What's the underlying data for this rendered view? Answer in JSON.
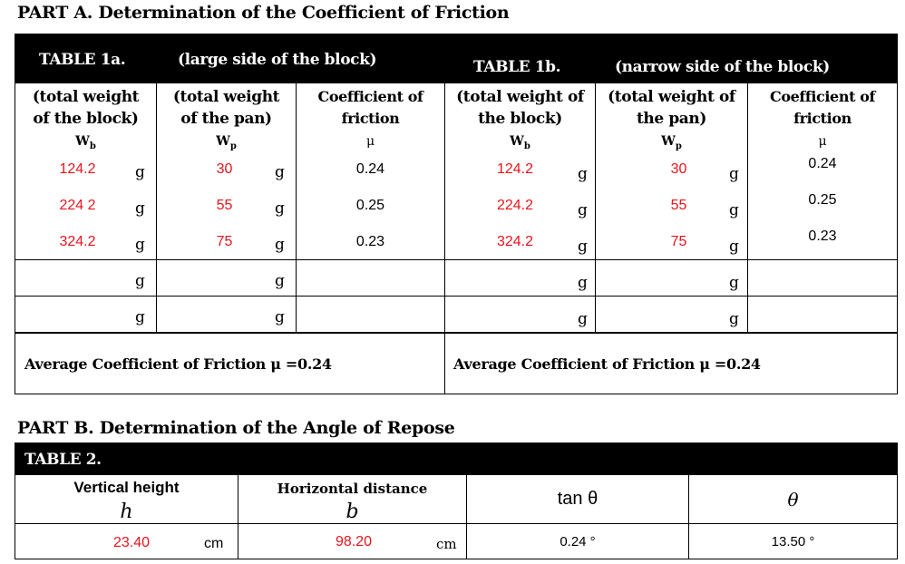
{
  "partA": {
    "title": "PART A.  Determination of the Coefficient of Friction",
    "table1a": {
      "name": "TABLE 1a.",
      "desc": "(large side of   the block)",
      "col1": [
        "(total weight",
        "of the block)"
      ],
      "col2": [
        "(total weight",
        "of the pan)"
      ],
      "col3": [
        "Coefficient of",
        "friction"
      ],
      "sym1": "Wb",
      "sym2": "Wp",
      "sym3": "μ",
      "rows": [
        {
          "wb": "124.2",
          "wp": "30",
          "mu": "0.24"
        },
        {
          "wb": "224 2",
          "wp": "55",
          "mu": "0.25"
        },
        {
          "wb": "324.2",
          "wp": "75",
          "mu": "0.23"
        },
        {
          "wb": "",
          "wp": "",
          "mu": ""
        },
        {
          "wb": "",
          "wp": "",
          "mu": ""
        }
      ],
      "unit": "g",
      "average": "Average Coefficient of Friction μ =0.24"
    },
    "table1b": {
      "name": "TABLE 1b.",
      "desc": "(narrow side of   the block)",
      "col1": [
        "(total weight of",
        "the block)"
      ],
      "col2": [
        "(total weight of",
        "the pan)"
      ],
      "col3": [
        "Coefficient of",
        "friction"
      ],
      "sym1": "Wb",
      "sym2": "Wp",
      "sym3": "μ",
      "rows": [
        {
          "wb": "124.2",
          "wp": "30",
          "mu": "0.24"
        },
        {
          "wb": "224.2",
          "wp": "55",
          "mu": "0.25"
        },
        {
          "wb": "324.2",
          "wp": "75",
          "mu": "0.23"
        },
        {
          "wb": "",
          "wp": "",
          "mu": ""
        },
        {
          "wb": "",
          "wp": "",
          "mu": ""
        }
      ],
      "unit": "g",
      "average": "Average Coefficient of Friction μ =0.24"
    }
  },
  "partB": {
    "title": "PART B.  Determination of the Angle of Repose",
    "table2": {
      "name": "TABLE 2.",
      "h_label": "Vertical height",
      "h_sym": "h",
      "b_label": "Horizontal distance",
      "b_sym": "b",
      "tan_label": "tan θ",
      "theta_label": "θ",
      "h_value": "23.40",
      "h_unit": "cm",
      "b_value": "98.20",
      "b_unit": "cm",
      "tan_value": "0.24 °",
      "theta_value": "13.50 °"
    }
  }
}
